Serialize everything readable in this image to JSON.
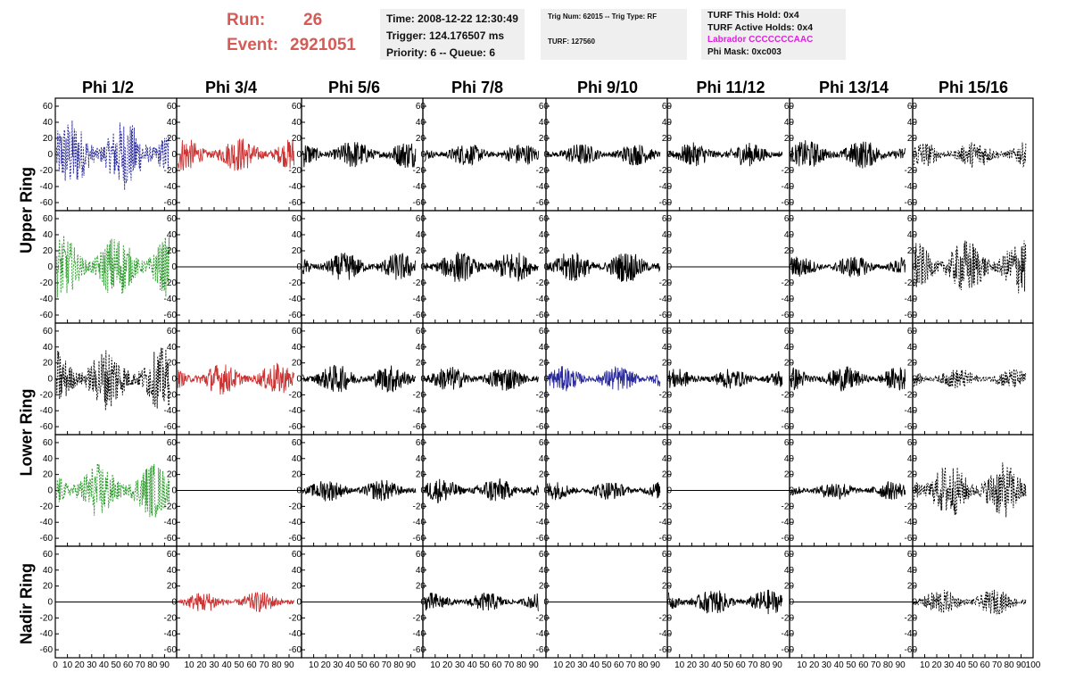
{
  "header": {
    "run_label": "Run:",
    "run_value": "26",
    "event_label": "Event:",
    "event_value": "2921051",
    "box1": {
      "time": "Time: 2008-12-22 12:30:49",
      "trigger": "Trigger: 124.176507 ms",
      "priority": "Priority: 6 -- Queue: 6"
    },
    "box2": {
      "trig": "Trig Num: 62015 -- Trig Type: RF",
      "turf": "TURF: 127560"
    },
    "box3": {
      "this_hold": "TURF This Hold: 0x4",
      "active_holds": "TURF Active Holds: 0x4",
      "labrador": "Labrador CCCCCCCAAC",
      "phi_mask": "Phi Mask: 0xc003"
    }
  },
  "columns": [
    "Phi 1/2",
    "Phi 3/4",
    "Phi 5/6",
    "Phi 7/8",
    "Phi 9/10",
    "Phi 11/12",
    "Phi 13/14",
    "Phi 15/16"
  ],
  "rings": [
    "Upper Ring",
    "Lower Ring",
    "Nadir Ring"
  ],
  "colors": {
    "red": "#cc3333",
    "blue": "#2a2a99",
    "green": "#2a9a2a",
    "black": "#000000",
    "labrador": "#e020e0",
    "run": "#d65a55"
  },
  "chart_data": {
    "type": "line",
    "rows": 5,
    "cols": 8,
    "xlim": [
      0,
      100
    ],
    "ylim": [
      -70,
      70
    ],
    "y_ticks": [
      -60,
      -40,
      -20,
      0,
      20,
      40,
      60
    ],
    "x_tick_labels": [
      "0",
      "10",
      "20",
      "30",
      "40",
      "50",
      "60",
      "70",
      "80",
      "90",
      "100"
    ],
    "panels": [
      [
        {
          "color": "blue",
          "style": "dashed",
          "amp": 45
        },
        {
          "color": "red",
          "style": "solid",
          "amp": 22
        },
        {
          "color": "black",
          "style": "solid",
          "amp": 18
        },
        {
          "color": "black",
          "style": "solid",
          "amp": 14
        },
        {
          "color": "black",
          "style": "solid",
          "amp": 14
        },
        {
          "color": "black",
          "style": "solid",
          "amp": 15
        },
        {
          "color": "black",
          "style": "solid",
          "amp": 18
        },
        {
          "color": "black",
          "style": "dashed",
          "amp": 17
        }
      ],
      [
        {
          "color": "green",
          "style": "dashed",
          "amp": 40
        },
        {
          "color": "black",
          "style": "flat",
          "amp": 0
        },
        {
          "color": "black",
          "style": "solid",
          "amp": 18
        },
        {
          "color": "black",
          "style": "solid",
          "amp": 20
        },
        {
          "color": "black",
          "style": "solid",
          "amp": 20
        },
        {
          "color": "black",
          "style": "flat",
          "amp": 0
        },
        {
          "color": "black",
          "style": "solid",
          "amp": 14
        },
        {
          "color": "black",
          "style": "dashed",
          "amp": 35
        }
      ],
      [
        {
          "color": "black",
          "style": "dashed",
          "amp": 40
        },
        {
          "color": "red",
          "style": "solid",
          "amp": 20
        },
        {
          "color": "black",
          "style": "solid",
          "amp": 18
        },
        {
          "color": "black",
          "style": "solid",
          "amp": 16
        },
        {
          "color": "blue",
          "style": "solid",
          "amp": 16
        },
        {
          "color": "black",
          "style": "solid",
          "amp": 13
        },
        {
          "color": "black",
          "style": "solid",
          "amp": 16
        },
        {
          "color": "black",
          "style": "dashed",
          "amp": 13
        }
      ],
      [
        {
          "color": "green",
          "style": "dashed",
          "amp": 35
        },
        {
          "color": "black",
          "style": "flat",
          "amp": 0
        },
        {
          "color": "black",
          "style": "solid",
          "amp": 14
        },
        {
          "color": "black",
          "style": "solid",
          "amp": 16
        },
        {
          "color": "black",
          "style": "solid",
          "amp": 12
        },
        {
          "color": "black",
          "style": "flat",
          "amp": 0
        },
        {
          "color": "black",
          "style": "solid",
          "amp": 12
        },
        {
          "color": "black",
          "style": "dashed",
          "amp": 35
        }
      ],
      [
        {
          "color": "black",
          "style": "flat",
          "amp": 0
        },
        {
          "color": "red",
          "style": "solid",
          "amp": 13
        },
        {
          "color": "black",
          "style": "flat",
          "amp": 0
        },
        {
          "color": "black",
          "style": "solid",
          "amp": 12
        },
        {
          "color": "black",
          "style": "flat",
          "amp": 0
        },
        {
          "color": "black",
          "style": "solid",
          "amp": 16
        },
        {
          "color": "black",
          "style": "flat",
          "amp": 0
        },
        {
          "color": "black",
          "style": "dashed",
          "amp": 16
        }
      ]
    ]
  }
}
